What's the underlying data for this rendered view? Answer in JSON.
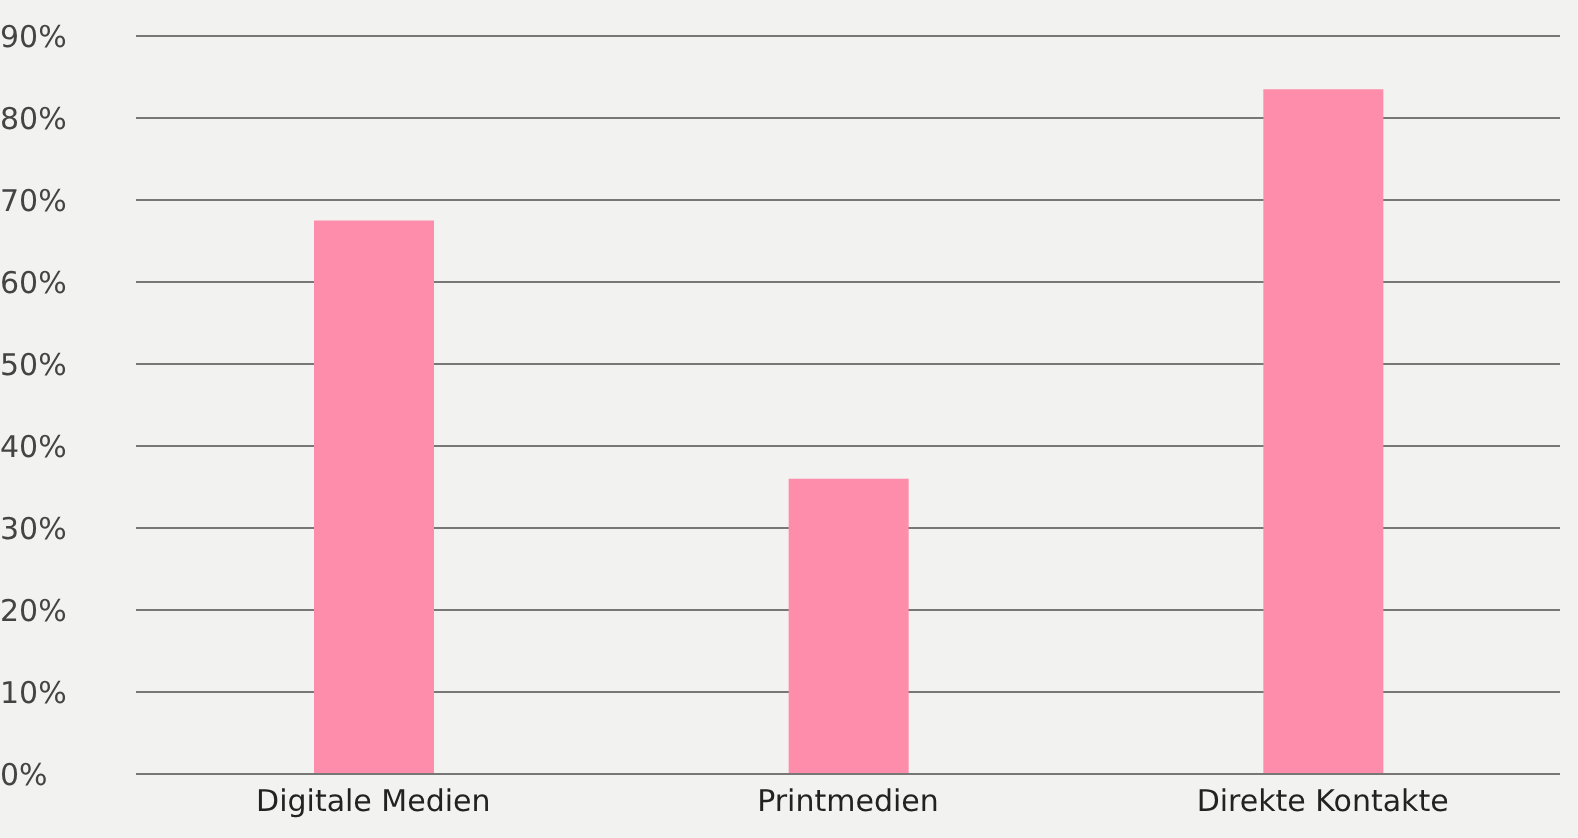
{
  "chart_data": {
    "type": "bar",
    "categories": [
      "Digitale Medien",
      "Printmedien",
      "Direkte Kontakte"
    ],
    "values": [
      67.5,
      36,
      83.5
    ],
    "color": "#fd8dab",
    "ylim": [
      0,
      90
    ],
    "yticks": [
      {
        "value": 0,
        "label": "0%"
      },
      {
        "value": 10,
        "label": "10%"
      },
      {
        "value": 20,
        "label": "20%"
      },
      {
        "value": 30,
        "label": "30%"
      },
      {
        "value": 40,
        "label": "40%"
      },
      {
        "value": 50,
        "label": "50%"
      },
      {
        "value": 60,
        "label": "60%"
      },
      {
        "value": 70,
        "label": "70%"
      },
      {
        "value": 80,
        "label": "80%"
      },
      {
        "value": 90,
        "label": "90%"
      }
    ],
    "grid": "y"
  }
}
